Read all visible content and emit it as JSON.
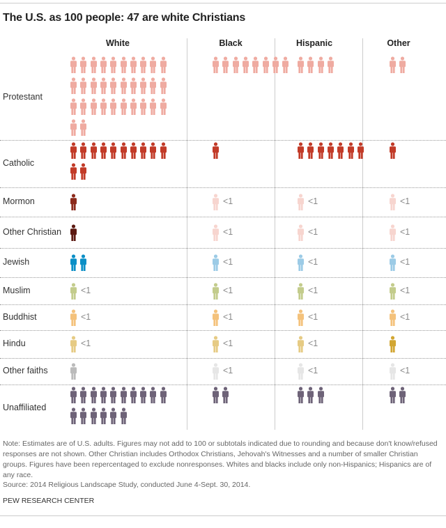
{
  "chart_data": {
    "type": "table",
    "title": "The U.S. as 100 people: 47 are white Christians",
    "columns": [
      "White",
      "Black",
      "Hispanic",
      "Other"
    ],
    "rows": [
      {
        "label": "Protestant",
        "values": [
          32,
          8,
          4,
          2
        ],
        "colors": [
          "#efaba1",
          "#efaba1",
          "#efaba1",
          "#efaba1"
        ]
      },
      {
        "label": "Catholic",
        "values": [
          12,
          1,
          7,
          1
        ],
        "colors": [
          "#c23b28",
          "#c23b28",
          "#c23b28",
          "#c23b28"
        ]
      },
      {
        "label": "Mormon",
        "values": [
          1,
          "<1",
          "<1",
          "<1"
        ],
        "colors": [
          "#8c2a1b",
          "#f7d5cf",
          "#f7d5cf",
          "#f7d5cf"
        ]
      },
      {
        "label": "Other Christian",
        "values": [
          1,
          "<1",
          "<1",
          "<1"
        ],
        "colors": [
          "#5c1a12",
          "#f7d5cf",
          "#f7d5cf",
          "#f7d5cf"
        ]
      },
      {
        "label": "Jewish",
        "values": [
          2,
          "<1",
          "<1",
          "<1"
        ],
        "colors": [
          "#0b8fc6",
          "#9ccbe6",
          "#9ccbe6",
          "#9ccbe6"
        ]
      },
      {
        "label": "Muslim",
        "values": [
          "<1",
          "<1",
          "<1",
          "<1"
        ],
        "colors": [
          "#c3cc8c",
          "#c3cc8c",
          "#c3cc8c",
          "#c3cc8c"
        ]
      },
      {
        "label": "Buddhist",
        "values": [
          "<1",
          "<1",
          "<1",
          "<1"
        ],
        "colors": [
          "#f4c27c",
          "#f4c27c",
          "#f4c27c",
          "#f4c27c"
        ]
      },
      {
        "label": "Hindu",
        "values": [
          "<1",
          "<1",
          "<1",
          1
        ],
        "colors": [
          "#e6cb84",
          "#e6cb84",
          "#e6cb84",
          "#d2a632"
        ]
      },
      {
        "label": "Other faiths",
        "values": [
          1,
          "<1",
          "<1",
          "<1"
        ],
        "colors": [
          "#bbbbbb",
          "#e6e6e6",
          "#e6e6e6",
          "#e6e6e6"
        ]
      },
      {
        "label": "Unaffiliated",
        "values": [
          16,
          2,
          3,
          2
        ],
        "colors": [
          "#6e6378",
          "#6e6378",
          "#6e6378",
          "#6e6378"
        ]
      }
    ],
    "icon": "person-icon",
    "grid": true
  },
  "notes": "Note: Estimates are of U.S. adults. Figures may not add to 100 or subtotals indicated due to rounding and because don't know/refused responses are not shown. Other Christian includes Orthodox Christians, Jehovah's Witnesses and a number of smaller Christian groups. Figures have been repercentaged to exclude nonresponses. Whites and blacks include only non-Hispanics; Hispanics are of any race.",
  "source": "Source: 2014 Religious Landscape Study, conducted June 4-Sept. 30, 2014.",
  "brand": "PEW RESEARCH CENTER"
}
